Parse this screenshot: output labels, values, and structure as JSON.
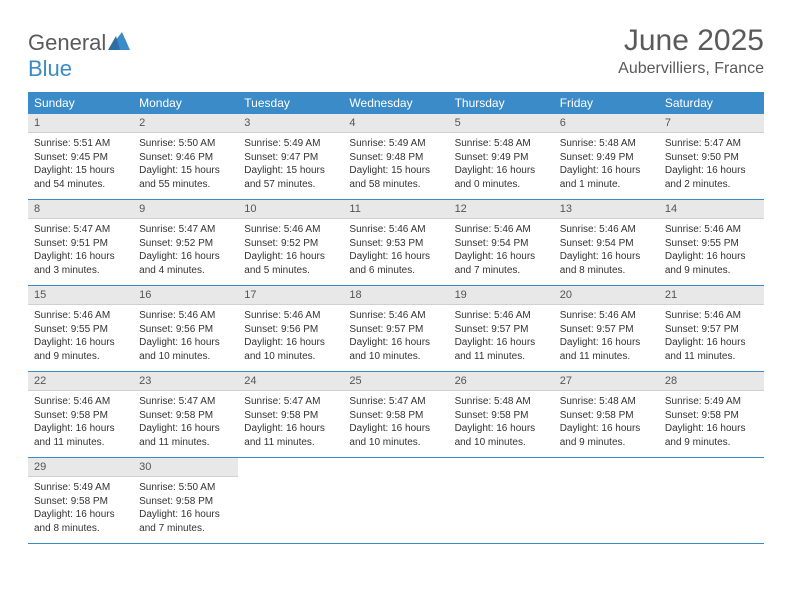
{
  "logo": {
    "part1": "General",
    "part2": "Blue"
  },
  "title": "June 2025",
  "location": "Aubervilliers, France",
  "colors": {
    "accent": "#3b8bc8",
    "header_text": "#ffffff",
    "daynum_bg": "#e8e8e8",
    "text": "#333333",
    "logo_gray": "#5a5a5a"
  },
  "weekdays": [
    "Sunday",
    "Monday",
    "Tuesday",
    "Wednesday",
    "Thursday",
    "Friday",
    "Saturday"
  ],
  "days": [
    {
      "n": "1",
      "sunrise": "5:51 AM",
      "sunset": "9:45 PM",
      "daylight": "15 hours and 54 minutes."
    },
    {
      "n": "2",
      "sunrise": "5:50 AM",
      "sunset": "9:46 PM",
      "daylight": "15 hours and 55 minutes."
    },
    {
      "n": "3",
      "sunrise": "5:49 AM",
      "sunset": "9:47 PM",
      "daylight": "15 hours and 57 minutes."
    },
    {
      "n": "4",
      "sunrise": "5:49 AM",
      "sunset": "9:48 PM",
      "daylight": "15 hours and 58 minutes."
    },
    {
      "n": "5",
      "sunrise": "5:48 AM",
      "sunset": "9:49 PM",
      "daylight": "16 hours and 0 minutes."
    },
    {
      "n": "6",
      "sunrise": "5:48 AM",
      "sunset": "9:49 PM",
      "daylight": "16 hours and 1 minute."
    },
    {
      "n": "7",
      "sunrise": "5:47 AM",
      "sunset": "9:50 PM",
      "daylight": "16 hours and 2 minutes."
    },
    {
      "n": "8",
      "sunrise": "5:47 AM",
      "sunset": "9:51 PM",
      "daylight": "16 hours and 3 minutes."
    },
    {
      "n": "9",
      "sunrise": "5:47 AM",
      "sunset": "9:52 PM",
      "daylight": "16 hours and 4 minutes."
    },
    {
      "n": "10",
      "sunrise": "5:46 AM",
      "sunset": "9:52 PM",
      "daylight": "16 hours and 5 minutes."
    },
    {
      "n": "11",
      "sunrise": "5:46 AM",
      "sunset": "9:53 PM",
      "daylight": "16 hours and 6 minutes."
    },
    {
      "n": "12",
      "sunrise": "5:46 AM",
      "sunset": "9:54 PM",
      "daylight": "16 hours and 7 minutes."
    },
    {
      "n": "13",
      "sunrise": "5:46 AM",
      "sunset": "9:54 PM",
      "daylight": "16 hours and 8 minutes."
    },
    {
      "n": "14",
      "sunrise": "5:46 AM",
      "sunset": "9:55 PM",
      "daylight": "16 hours and 9 minutes."
    },
    {
      "n": "15",
      "sunrise": "5:46 AM",
      "sunset": "9:55 PM",
      "daylight": "16 hours and 9 minutes."
    },
    {
      "n": "16",
      "sunrise": "5:46 AM",
      "sunset": "9:56 PM",
      "daylight": "16 hours and 10 minutes."
    },
    {
      "n": "17",
      "sunrise": "5:46 AM",
      "sunset": "9:56 PM",
      "daylight": "16 hours and 10 minutes."
    },
    {
      "n": "18",
      "sunrise": "5:46 AM",
      "sunset": "9:57 PM",
      "daylight": "16 hours and 10 minutes."
    },
    {
      "n": "19",
      "sunrise": "5:46 AM",
      "sunset": "9:57 PM",
      "daylight": "16 hours and 11 minutes."
    },
    {
      "n": "20",
      "sunrise": "5:46 AM",
      "sunset": "9:57 PM",
      "daylight": "16 hours and 11 minutes."
    },
    {
      "n": "21",
      "sunrise": "5:46 AM",
      "sunset": "9:57 PM",
      "daylight": "16 hours and 11 minutes."
    },
    {
      "n": "22",
      "sunrise": "5:46 AM",
      "sunset": "9:58 PM",
      "daylight": "16 hours and 11 minutes."
    },
    {
      "n": "23",
      "sunrise": "5:47 AM",
      "sunset": "9:58 PM",
      "daylight": "16 hours and 11 minutes."
    },
    {
      "n": "24",
      "sunrise": "5:47 AM",
      "sunset": "9:58 PM",
      "daylight": "16 hours and 11 minutes."
    },
    {
      "n": "25",
      "sunrise": "5:47 AM",
      "sunset": "9:58 PM",
      "daylight": "16 hours and 10 minutes."
    },
    {
      "n": "26",
      "sunrise": "5:48 AM",
      "sunset": "9:58 PM",
      "daylight": "16 hours and 10 minutes."
    },
    {
      "n": "27",
      "sunrise": "5:48 AM",
      "sunset": "9:58 PM",
      "daylight": "16 hours and 9 minutes."
    },
    {
      "n": "28",
      "sunrise": "5:49 AM",
      "sunset": "9:58 PM",
      "daylight": "16 hours and 9 minutes."
    },
    {
      "n": "29",
      "sunrise": "5:49 AM",
      "sunset": "9:58 PM",
      "daylight": "16 hours and 8 minutes."
    },
    {
      "n": "30",
      "sunrise": "5:50 AM",
      "sunset": "9:58 PM",
      "daylight": "16 hours and 7 minutes."
    }
  ],
  "labels": {
    "sunrise": "Sunrise:",
    "sunset": "Sunset:",
    "daylight": "Daylight:"
  },
  "layout": {
    "start_weekday_index": 0,
    "total_cells": 35
  }
}
